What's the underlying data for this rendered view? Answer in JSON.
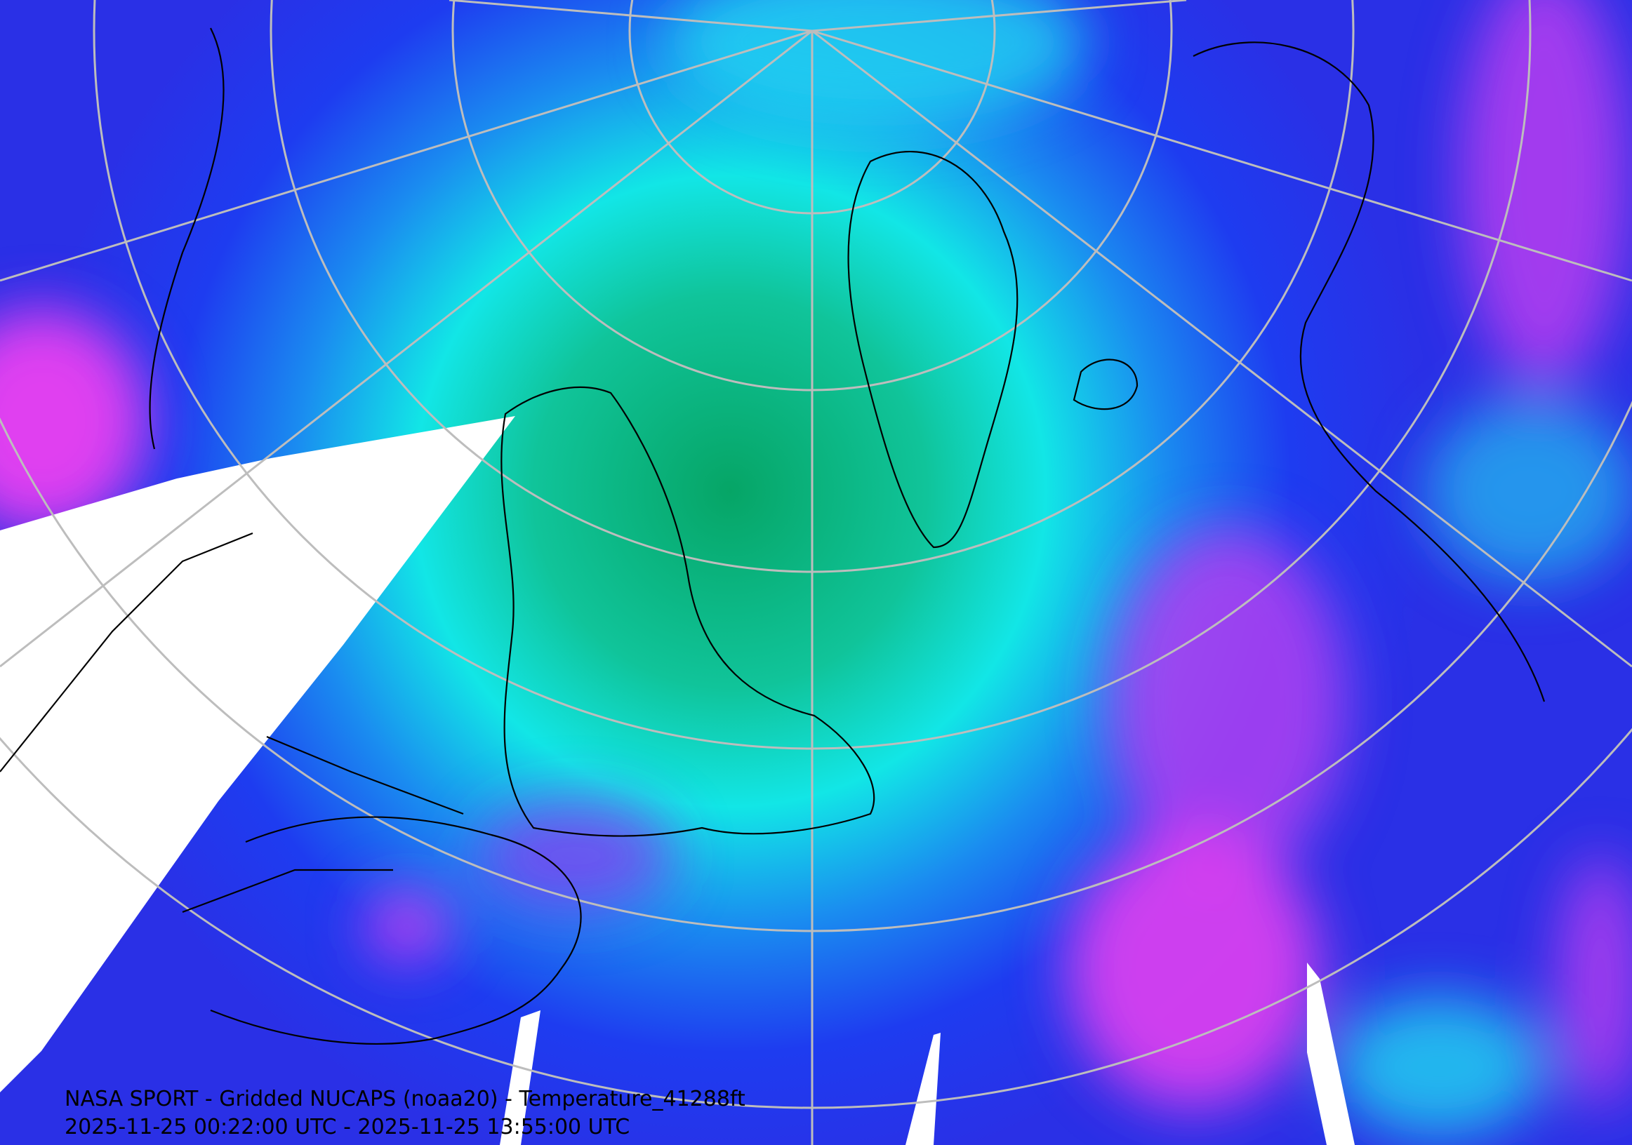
{
  "caption": {
    "line1": "NASA SPORT - Gridded NUCAPS (noaa20) - Temperature_41288ft",
    "line2": "2025-11-25 00:22:00 UTC - 2025-11-25 13:55:00 UTC"
  }
}
